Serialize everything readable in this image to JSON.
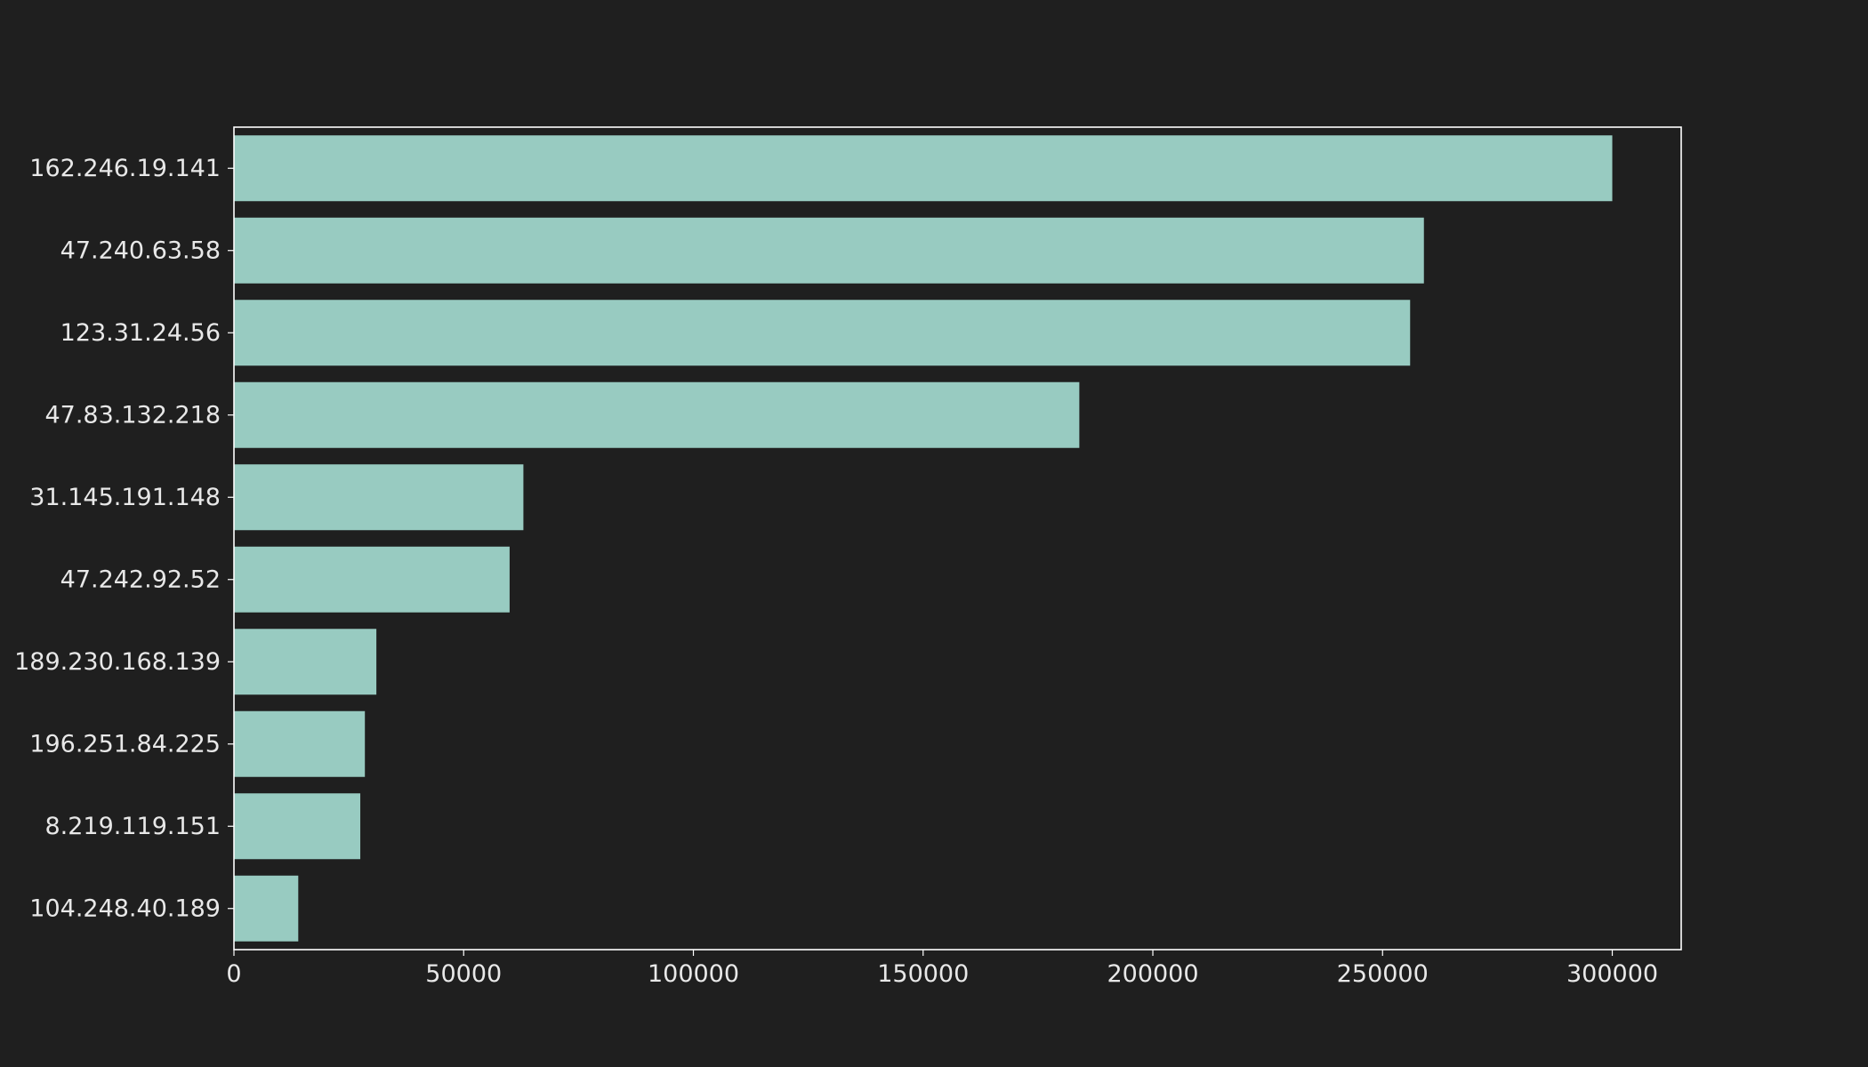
{
  "chart_data": {
    "type": "bar",
    "orientation": "horizontal",
    "title": "",
    "xlabel": "",
    "ylabel": "",
    "categories": [
      "162.246.19.141",
      "47.240.63.58",
      "123.31.24.56",
      "47.83.132.218",
      "31.145.191.148",
      "47.242.92.52",
      "189.230.168.139",
      "196.251.84.225",
      "8.219.119.151",
      "104.248.40.189"
    ],
    "values": [
      300000,
      259000,
      256000,
      184000,
      63000,
      60000,
      31000,
      28500,
      27500,
      14000
    ],
    "xlim": [
      0,
      315000
    ],
    "xticks": [
      0,
      50000,
      100000,
      150000,
      200000,
      250000,
      300000
    ],
    "xtick_labels": [
      "0",
      "50000",
      "100000",
      "150000",
      "200000",
      "250000",
      "300000"
    ],
    "grid": false,
    "legend": "none",
    "colors": {
      "background": "#1f1f1f",
      "bar": "#98cbc1",
      "axes": "#ffffff",
      "text": "#e8e8e8"
    }
  }
}
